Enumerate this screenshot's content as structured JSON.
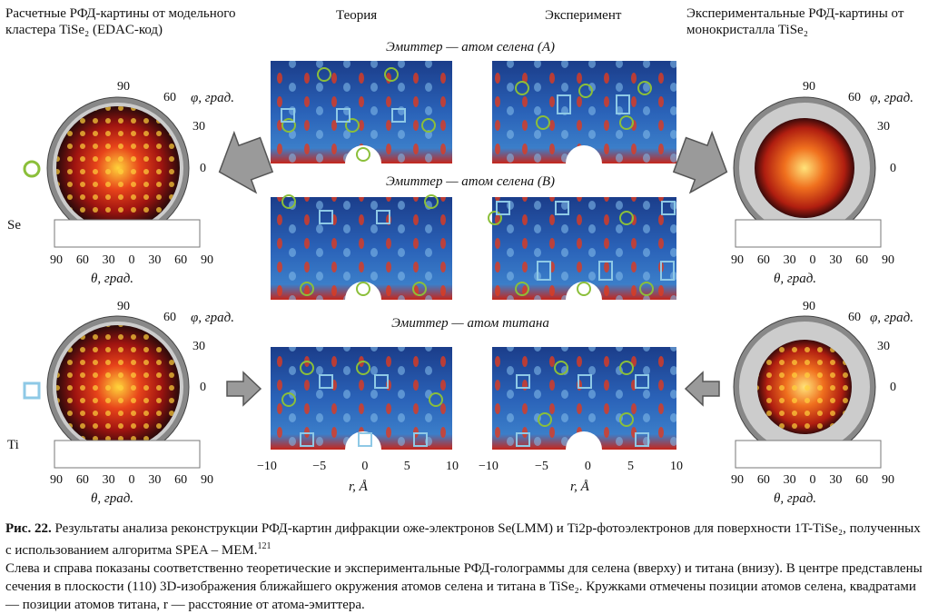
{
  "headers": {
    "left": "Расчетные РФД-картины от модельного кластера TiSe₂ (EDAC-код)",
    "theory": "Теория",
    "experiment": "Эксперимент",
    "right": "Экспериментальные РФД-картины от монокристалла TiSe₂"
  },
  "emitters": {
    "a": "Эмиттер — атом селена (A)",
    "b": "Эмиттер — атом селена (B)",
    "ti": "Эмиттер — атом титана"
  },
  "polar_labels": {
    "phi": "φ, град.",
    "theta": "θ, град.",
    "phi_ticks": [
      "90",
      "60",
      "30",
      "0"
    ],
    "theta_ticks": [
      "90",
      "60",
      "30",
      "0",
      "30",
      "60",
      "90"
    ]
  },
  "row_labels": {
    "se": "Se",
    "ti": "Ti"
  },
  "axis": {
    "xlabel": "r, Å",
    "ticks": [
      "−10",
      "−5",
      "0",
      "5",
      "10"
    ]
  },
  "caption": {
    "fig": "Рис. 22.",
    "line1": "Результаты анализа реконструкции РФД-картин дифракции оже-электронов Se(LMM) и Ti2p-фотоэлектронов для поверхности 1T-TiSe₂, полученных с использованием алгоритма SPEA – MEM.",
    "ref": "121",
    "line2": "Слева и справа показаны соответственно теоретические и экспериментальные РФД-голограммы для селена (вверху) и титана (внизу). В центре представлены сечения в плоскости (110) 3D-изображения ближайшего окружения атомов селена и титана в TiSe₂. Кружками отмечены позиции атомов селена, квадратами — позиции атомов титана, r — расстояние от атома-эмиттера."
  },
  "colors": {
    "circle_marker": "#8bbf3a",
    "square_marker": "#8ec9e6",
    "arrow": "#9a9a9a"
  }
}
